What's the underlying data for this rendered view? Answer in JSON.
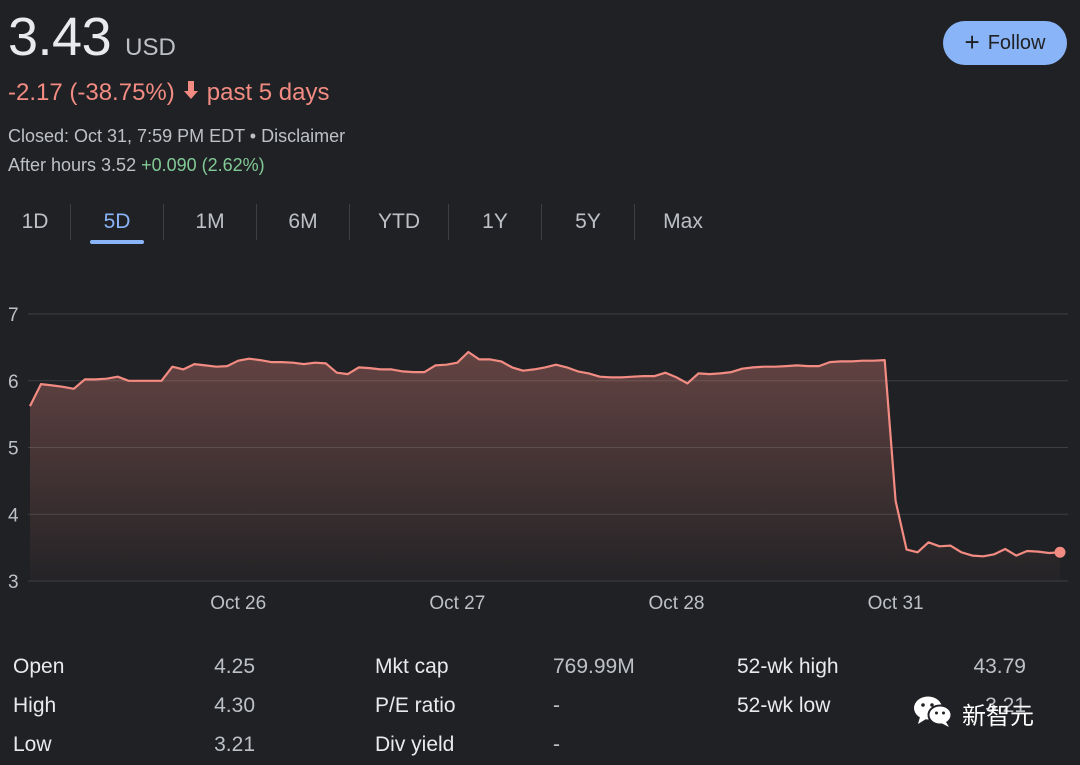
{
  "quote": {
    "price": "3.43",
    "currency": "USD",
    "change": "-2.17 (-38.75%)",
    "change_period": "past 5 days",
    "closed": "Closed: Oct 31, 7:59 PM EDT",
    "separator": " • ",
    "disclaimer": "Disclaimer",
    "after_hours_label": "After hours 3.52",
    "after_hours_change": "+0.090 (2.62%)"
  },
  "follow_button": {
    "label": "Follow"
  },
  "tabs": [
    {
      "label": "1D",
      "active": false
    },
    {
      "label": "5D",
      "active": true
    },
    {
      "label": "1M",
      "active": false
    },
    {
      "label": "6M",
      "active": false
    },
    {
      "label": "YTD",
      "active": false
    },
    {
      "label": "1Y",
      "active": false
    },
    {
      "label": "5Y",
      "active": false
    },
    {
      "label": "Max",
      "active": false
    }
  ],
  "chart_data": {
    "type": "area",
    "ylim": [
      3,
      7
    ],
    "yticks": [
      3,
      4,
      5,
      6,
      7
    ],
    "xticks": [
      {
        "label": "Oct 26",
        "index": 19
      },
      {
        "label": "Oct 27",
        "index": 39
      },
      {
        "label": "Oct 28",
        "index": 59
      },
      {
        "label": "Oct 31",
        "index": 79
      }
    ],
    "series": [
      {
        "values": [
          5.62,
          5.95,
          5.93,
          5.91,
          5.88,
          6.02,
          6.02,
          6.03,
          6.06,
          6.0,
          6.0,
          6.0,
          6.0,
          6.21,
          6.17,
          6.25,
          6.23,
          6.21,
          6.22,
          6.3,
          6.33,
          6.31,
          6.28,
          6.28,
          6.27,
          6.25,
          6.27,
          6.26,
          6.12,
          6.1,
          6.2,
          6.19,
          6.17,
          6.17,
          6.14,
          6.13,
          6.13,
          6.23,
          6.24,
          6.27,
          6.43,
          6.32,
          6.32,
          6.29,
          6.2,
          6.15,
          6.17,
          6.2,
          6.24,
          6.2,
          6.14,
          6.11,
          6.06,
          6.05,
          6.05,
          6.06,
          6.07,
          6.07,
          6.12,
          6.05,
          5.96,
          6.11,
          6.1,
          6.11,
          6.13,
          6.18,
          6.2,
          6.21,
          6.21,
          6.22,
          6.23,
          6.22,
          6.22,
          6.28,
          6.29,
          6.29,
          6.3,
          6.3,
          6.31,
          4.2,
          3.47,
          3.43,
          3.58,
          3.52,
          3.53,
          3.43,
          3.38,
          3.37,
          3.4,
          3.48,
          3.38,
          3.45,
          3.44,
          3.42,
          3.43
        ]
      }
    ],
    "line_color": "#f28b82",
    "grid": true
  },
  "stats": {
    "col1": [
      {
        "label": "Open",
        "value": "4.25"
      },
      {
        "label": "High",
        "value": "4.30"
      },
      {
        "label": "Low",
        "value": "3.21"
      }
    ],
    "col2": [
      {
        "label": "Mkt cap",
        "value": "769.99M"
      },
      {
        "label": "P/E ratio",
        "value": "-"
      },
      {
        "label": "Div yield",
        "value": "-"
      }
    ],
    "col3": [
      {
        "label": "52-wk high",
        "value": "43.79"
      },
      {
        "label": "52-wk low",
        "value": "3.21"
      }
    ]
  },
  "watermark": {
    "text": "新智元",
    "icon": "wechat-icon"
  },
  "colors": {
    "negative": "#f28b82",
    "positive": "#81c995",
    "accent": "#8ab4f8",
    "background": "#202124"
  }
}
